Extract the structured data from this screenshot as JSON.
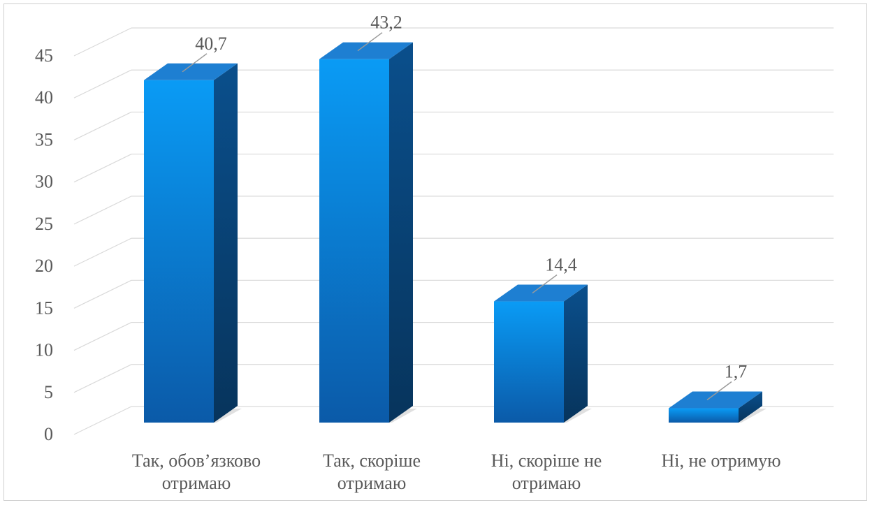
{
  "chart_data": {
    "type": "bar",
    "style": "3d-column",
    "categories": [
      [
        "Так, обов’язково",
        "отримаю"
      ],
      [
        "Так, скоріше",
        "отримаю"
      ],
      [
        "Ні, скоріше не",
        "отримаю"
      ],
      [
        "Ні, не отримую"
      ]
    ],
    "values": [
      40.7,
      43.2,
      14.4,
      1.7
    ],
    "value_labels": [
      "40,7",
      "43,2",
      "14,4",
      "1,7"
    ],
    "ylim": [
      0,
      45
    ],
    "yticks": [
      0,
      5,
      10,
      15,
      20,
      25,
      30,
      35,
      40,
      45
    ],
    "grid": true,
    "legend": "none",
    "colors": {
      "front_top": "#0a9bf5",
      "front_bottom": "#0b5aa8",
      "side": "#0a4f8c",
      "top": "#1e7fd2",
      "grid": "#d9d9d9",
      "text": "#595959"
    }
  }
}
